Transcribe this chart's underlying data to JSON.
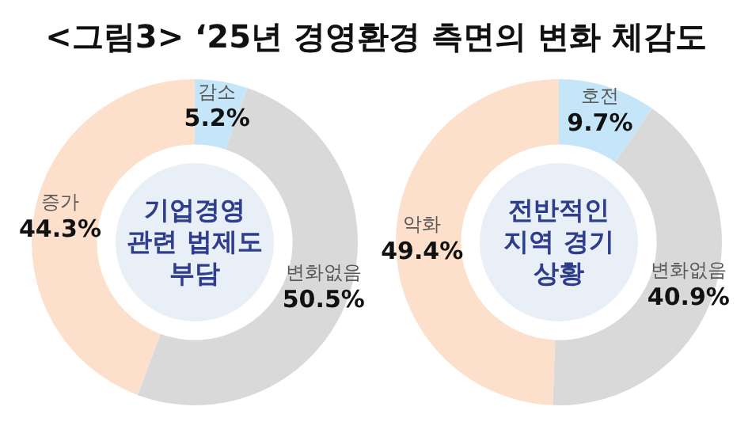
{
  "chart_data": [
    {
      "type": "other",
      "title": "<그림3> ‘25년 경영환경 측면의 변화 체감도"
    },
    {
      "type": "donut",
      "title": "기업경영 관련 법제도 부담",
      "categories": [
        "감소",
        "변화없음",
        "증가"
      ],
      "values": [
        5.2,
        50.5,
        44.3
      ],
      "colors": [
        "#c5e6f8",
        "#d9d9d9",
        "#fde0cb"
      ],
      "value_labels": [
        "5.2%",
        "50.5%",
        "44.3%"
      ],
      "legend": false
    },
    {
      "type": "donut",
      "title": "전반적인 지역 경기 상황",
      "categories": [
        "호전",
        "변화없음",
        "악화"
      ],
      "values": [
        9.7,
        40.9,
        49.4
      ],
      "colors": [
        "#c5e6f8",
        "#d9d9d9",
        "#fde0cb"
      ],
      "value_labels": [
        "9.7%",
        "40.9%",
        "49.4%"
      ],
      "legend": false
    }
  ]
}
